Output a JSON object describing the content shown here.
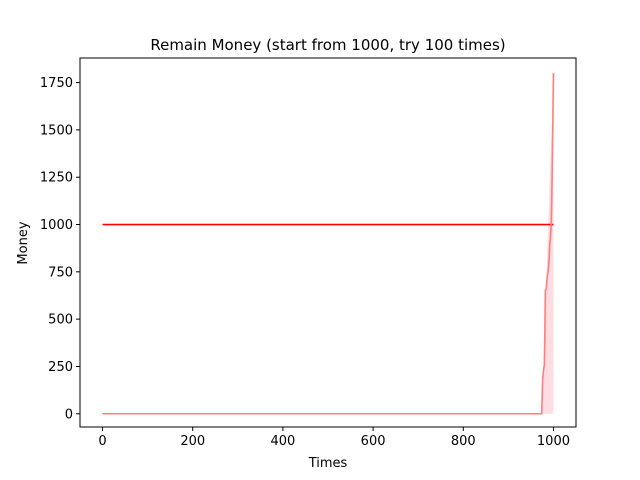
{
  "chart_data": {
    "type": "line",
    "title": "Remain Money (start from 1000, try 100 times)",
    "xlabel": "Times",
    "ylabel": "Money",
    "xlim": [
      -50,
      1050
    ],
    "ylim": [
      -70,
      1880
    ],
    "xticks": [
      0,
      200,
      400,
      600,
      800,
      1000
    ],
    "yticks": [
      0,
      250,
      500,
      750,
      1000,
      1250,
      1500,
      1750
    ],
    "grid": false,
    "legend": "none",
    "colors": {
      "reference": "#ff0000",
      "money": "#ff7f7f",
      "band": "#ffdde3",
      "axes": "#000000"
    },
    "series": [
      {
        "role": "reference",
        "x": [
          0,
          1000
        ],
        "y": [
          1000,
          1000
        ]
      },
      {
        "role": "money",
        "x": [
          0,
          974,
          976,
          978,
          980,
          982,
          984,
          986,
          988,
          990,
          992,
          993,
          995,
          996,
          997,
          998,
          999,
          1000
        ],
        "y": [
          0,
          0,
          180,
          230,
          260,
          650,
          660,
          720,
          750,
          800,
          900,
          920,
          1000,
          1100,
          1250,
          1420,
          1600,
          1800
        ]
      }
    ],
    "band": {
      "x": [
        974,
        1000
      ],
      "lower": [
        0,
        0
      ],
      "upper": [
        0,
        1800
      ]
    }
  }
}
